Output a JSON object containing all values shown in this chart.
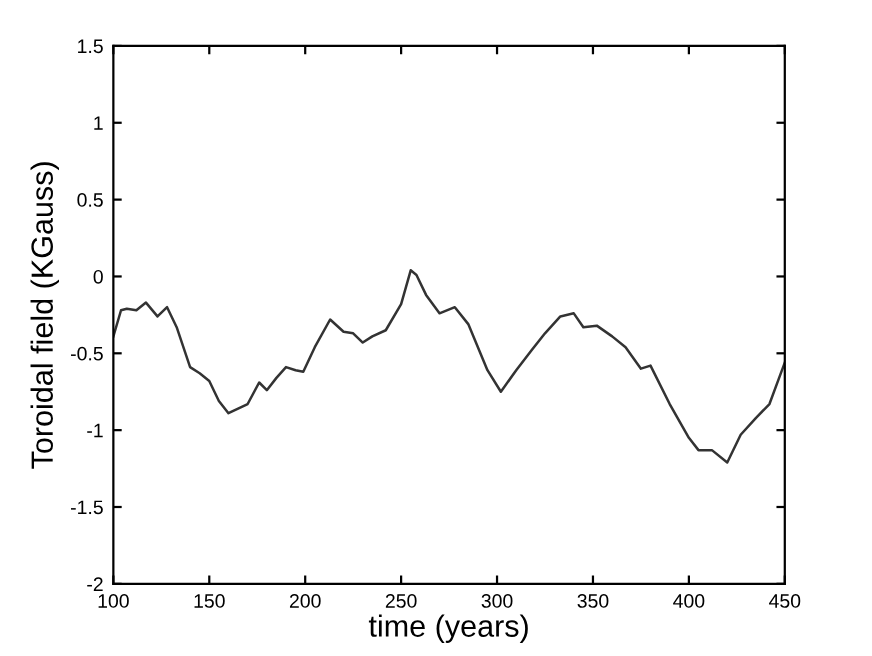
{
  "chart_data": {
    "type": "line",
    "xlabel": "time (years)",
    "ylabel": "Toroidal field (KGauss)",
    "xlim": [
      100,
      450
    ],
    "ylim": [
      -2,
      1.5
    ],
    "xticks": [
      100,
      150,
      200,
      250,
      300,
      350,
      400,
      450
    ],
    "yticks": [
      -2,
      -1.5,
      -1,
      -0.5,
      0,
      0.5,
      1,
      1.5
    ],
    "grid": false,
    "legend": false,
    "marker": "none",
    "line_style": "solid",
    "series": [
      {
        "color": "#333333",
        "x": [
          100,
          104,
          107,
          112,
          117,
          123,
          128,
          133,
          140,
          145,
          150,
          155,
          160,
          165,
          170,
          176,
          180,
          185,
          190,
          195,
          199,
          205,
          213,
          220,
          225,
          230,
          235,
          242,
          250,
          255,
          258,
          263,
          270,
          278,
          285,
          295,
          302,
          310,
          318,
          325,
          333,
          340,
          345,
          352,
          360,
          367,
          375,
          380,
          390,
          400,
          405,
          412,
          420,
          427,
          435,
          442,
          450
        ],
        "values": [
          -0.39,
          -0.22,
          -0.21,
          -0.22,
          -0.17,
          -0.26,
          -0.2,
          -0.33,
          -0.59,
          -0.63,
          -0.68,
          -0.81,
          -0.89,
          -0.86,
          -0.83,
          -0.69,
          -0.74,
          -0.66,
          -0.59,
          -0.61,
          -0.62,
          -0.46,
          -0.28,
          -0.36,
          -0.37,
          -0.43,
          -0.39,
          -0.35,
          -0.18,
          0.04,
          0.01,
          -0.12,
          -0.24,
          -0.2,
          -0.31,
          -0.61,
          -0.75,
          -0.61,
          -0.48,
          -0.37,
          -0.26,
          -0.24,
          -0.33,
          -0.32,
          -0.39,
          -0.46,
          -0.6,
          -0.58,
          -0.83,
          -1.05,
          -1.13,
          -1.13,
          -1.21,
          -1.03,
          -0.92,
          -0.83,
          -0.56
        ]
      }
    ]
  }
}
